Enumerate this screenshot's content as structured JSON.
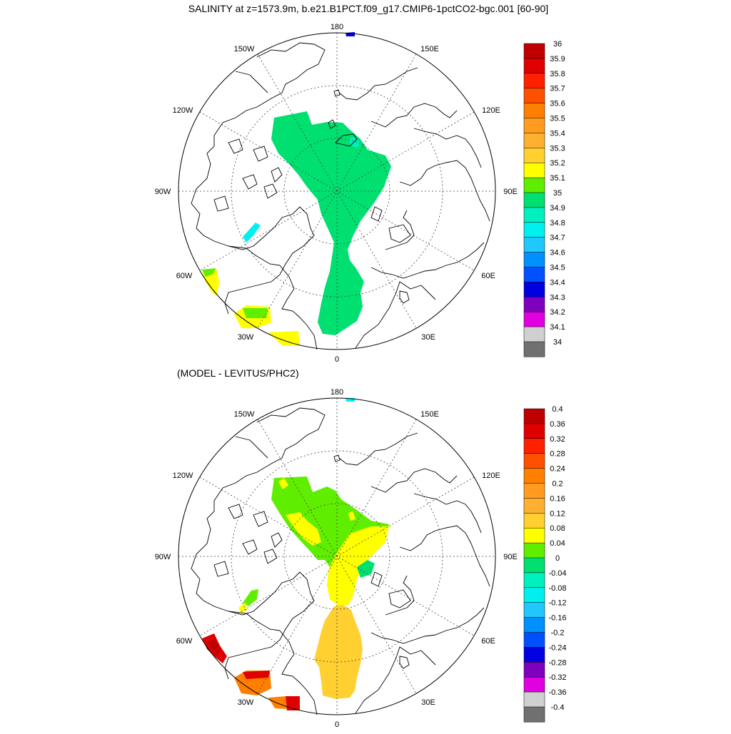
{
  "panels": [
    {
      "title": "SALINITY at z=1573.9m, b.e21.B1PCT.f09_g17.CMIP6-1pctCO2-bgc.001 [60-90]",
      "lon_labels": {
        "top": "180",
        "bottom": "0",
        "left": "90W",
        "right": "90E",
        "upper_left_1": "150W",
        "upper_left_2": "120W",
        "upper_right_1": "150E",
        "upper_right_2": "120E",
        "lower_left_1": "60W",
        "lower_left_2": "30W",
        "lower_right_1": "60E",
        "lower_right_2": "30E"
      },
      "colorbar": {
        "labels": [
          "36",
          "35.9",
          "35.8",
          "35.7",
          "35.6",
          "35.5",
          "35.4",
          "35.3",
          "35.2",
          "35.1",
          "35",
          "34.9",
          "34.8",
          "34.7",
          "34.6",
          "34.5",
          "34.4",
          "34.3",
          "34.2",
          "34.1",
          "34"
        ],
        "colors": [
          "#c00000",
          "#e00000",
          "#ff2000",
          "#ff5000",
          "#ff8000",
          "#ff9c20",
          "#ffb030",
          "#ffd030",
          "#ffff00",
          "#60ee00",
          "#00e070",
          "#00f0c0",
          "#00f0f0",
          "#20c8ff",
          "#0090ff",
          "#0050ff",
          "#0000e0",
          "#8000c0",
          "#e000e0",
          "#d0d0d0",
          "#707070"
        ]
      }
    },
    {
      "title": "(MODEL - LEVITUS/PHC2)",
      "lon_labels": {
        "top": "180",
        "bottom": "0",
        "left": "90W",
        "right": "90E",
        "upper_left_1": "150W",
        "upper_left_2": "120W",
        "upper_right_1": "150E",
        "upper_right_2": "120E",
        "lower_left_1": "60W",
        "lower_left_2": "30W",
        "lower_right_1": "60E",
        "lower_right_2": "30E"
      },
      "colorbar": {
        "labels": [
          "0.4",
          "0.36",
          "0.32",
          "0.28",
          "0.24",
          "0.2",
          "0.16",
          "0.12",
          "0.08",
          "0.04",
          "0",
          "-0.04",
          "-0.08",
          "-0.12",
          "-0.16",
          "-0.2",
          "-0.24",
          "-0.28",
          "-0.32",
          "-0.36",
          "-0.4"
        ],
        "colors": [
          "#c00000",
          "#e00000",
          "#ff2000",
          "#ff5000",
          "#ff8000",
          "#ff9c20",
          "#ffb030",
          "#ffd030",
          "#ffff00",
          "#60ee00",
          "#00e070",
          "#00f0c0",
          "#00f0f0",
          "#20c8ff",
          "#0090ff",
          "#0050ff",
          "#0000e0",
          "#8000c0",
          "#e000e0",
          "#d0d0d0",
          "#707070"
        ]
      }
    }
  ],
  "fill_colors": {
    "green": "#00e070",
    "lime": "#60ee00",
    "yellow": "#ffff00",
    "gold": "#ffd030",
    "orange": "#ff8000",
    "red": "#e00000",
    "cyan": "#00f0f0",
    "blue": "#0000e0"
  }
}
